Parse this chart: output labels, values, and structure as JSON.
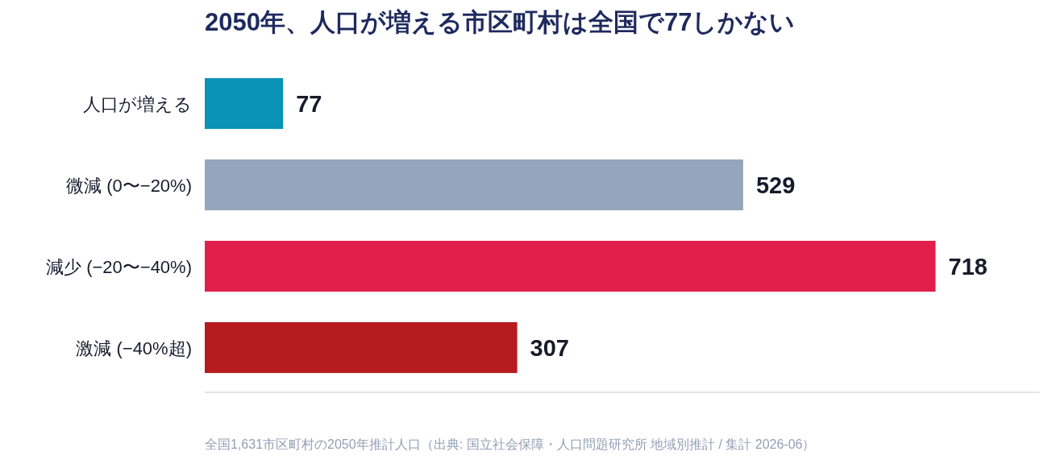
{
  "chart_data": {
    "type": "bar",
    "orientation": "horizontal",
    "title": "2050年、人口が増える市区町村は全国で77しかない",
    "categories": [
      "人口が増える",
      "微減 (0〜−20%)",
      "減少 (−20〜−40%)",
      "激減 (−40%超)"
    ],
    "values": [
      77,
      529,
      718,
      307
    ],
    "colors": [
      "#0a93b6",
      "#95a5bb",
      "#e21f4a",
      "#b61c1e"
    ],
    "data_labels": true,
    "annotations": [
      "全国1,631市区町村の2050年推計人口（出典: 国立社会保障・人口問題研究所 地域別推計 / 集計 2026-06）"
    ]
  }
}
